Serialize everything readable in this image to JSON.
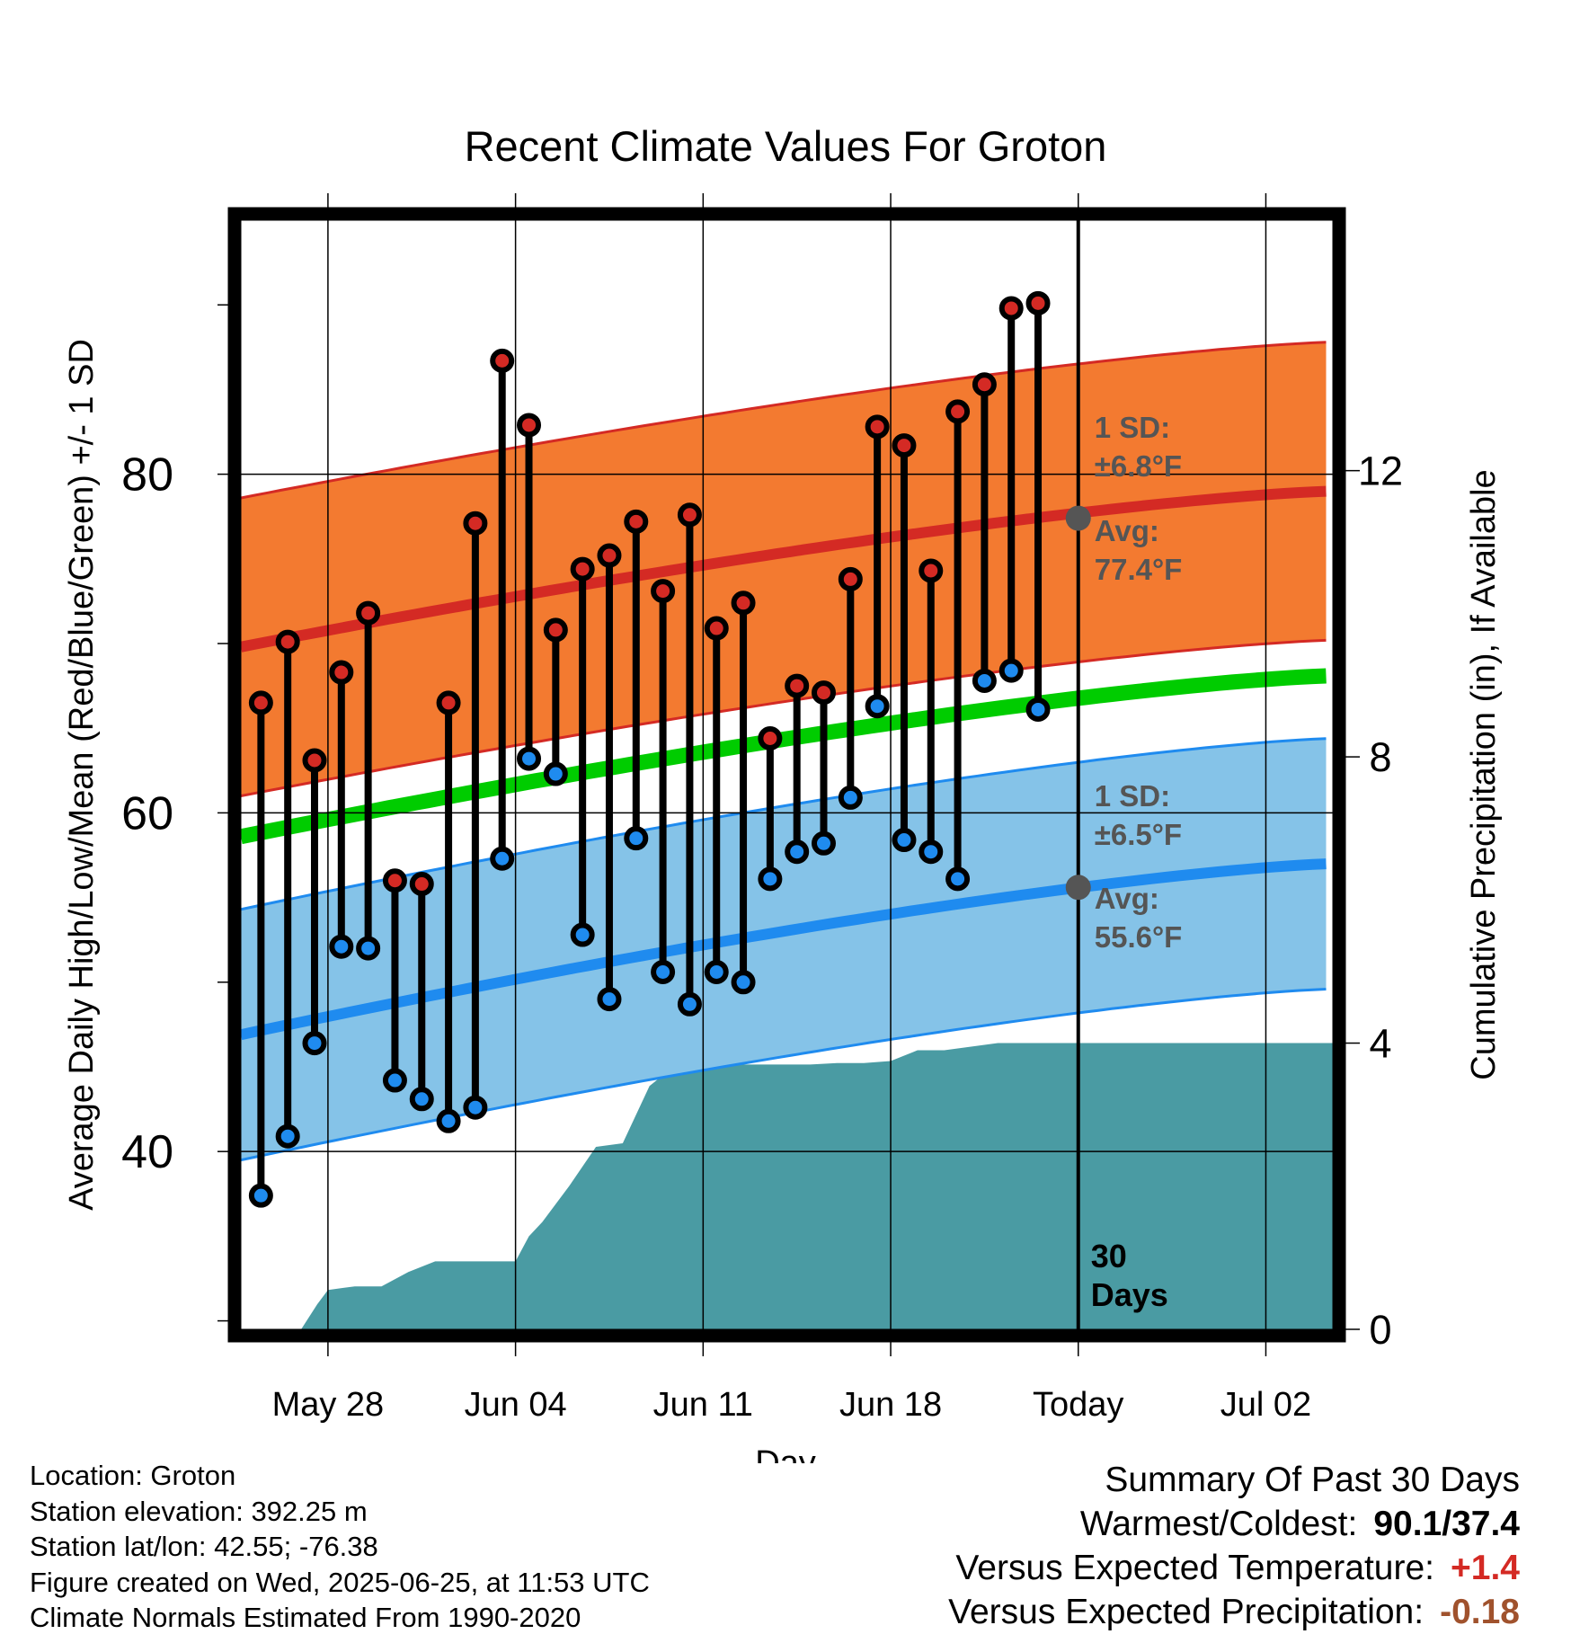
{
  "chart_data": {
    "type": "line",
    "title": "Recent Climate Values For Groton",
    "xlabel": "Day",
    "ylabel": "Average Daily High/Low/Mean (Red/Blue/Green) +/- 1 SD",
    "y2label": "Cumulative Precipitation (in), If Available",
    "x_tick_labels": [
      "May 28",
      "Jun 04",
      "Jun 11",
      "Jun 18",
      "Today",
      "Jul 02"
    ],
    "x_tick_days": [
      3,
      10,
      17,
      24,
      31,
      38
    ],
    "xlim_days": [
      -0.25,
      40.5
    ],
    "ylim": [
      29.5,
      95
    ],
    "y_ticks": [
      40,
      60,
      80
    ],
    "y2lim": [
      0,
      15.5
    ],
    "y2_ticks": [
      0,
      4,
      8,
      12
    ],
    "today_day": 31,
    "today_label_line1": "30",
    "today_label_line2": "Days",
    "colors": {
      "high_band": "#f37a30",
      "high_line": "#d42a24",
      "low_band": "#85c3e8",
      "low_line": "#1f8bef",
      "mean_line": "#00cc00",
      "precip": "#4a9ba3",
      "high_marker": "#d42a24",
      "low_marker": "#1f8bef"
    },
    "normals": {
      "high_avg_start": 69.8,
      "high_avg_end": 79.0,
      "high_sd": 8.8,
      "low_avg_start": 46.9,
      "low_avg_end": 57.0,
      "low_sd": 7.4,
      "mean_start": 58.6,
      "mean_end": 68.1
    },
    "observed": {
      "highs": [
        66.5,
        70.1,
        63.1,
        68.3,
        71.8,
        56.0,
        55.8,
        66.5,
        77.1,
        86.7,
        82.9,
        70.8,
        74.4,
        75.2,
        77.2,
        73.1,
        77.6,
        70.9,
        72.4,
        64.4,
        67.5,
        67.1,
        73.8,
        82.8,
        81.7,
        74.3,
        83.7,
        85.3,
        89.8,
        90.1
      ],
      "lows": [
        37.4,
        40.9,
        46.4,
        52.1,
        52.0,
        44.2,
        43.1,
        41.8,
        42.6,
        57.3,
        63.2,
        62.3,
        52.8,
        49.0,
        58.5,
        50.6,
        48.7,
        50.6,
        50.0,
        56.1,
        57.7,
        58.2,
        60.9,
        66.3,
        58.4,
        57.7,
        56.1,
        67.8,
        68.4,
        66.1
      ]
    },
    "precip_cumulative": {
      "days": [
        0,
        2,
        2.6,
        3,
        4,
        5,
        6,
        7,
        8,
        9,
        10,
        10.5,
        11,
        12,
        13,
        14,
        15,
        16,
        17,
        18,
        19,
        20,
        21,
        22,
        23,
        24,
        25,
        26,
        27,
        28,
        29,
        30,
        31,
        40.5
      ],
      "values": [
        0,
        0,
        0.35,
        0.55,
        0.6,
        0.6,
        0.8,
        0.95,
        0.95,
        0.95,
        0.95,
        1.3,
        1.5,
        2.0,
        2.55,
        2.6,
        3.4,
        3.7,
        3.7,
        3.7,
        3.7,
        3.7,
        3.7,
        3.72,
        3.72,
        3.75,
        3.9,
        3.9,
        3.95,
        4.0,
        4.0,
        4.0,
        4.0,
        4.0
      ]
    },
    "annotations": {
      "high_sd_title": "1 SD:",
      "high_sd_value": "±6.8°F",
      "high_avg_title": "Avg:",
      "high_avg_value": "77.4°F",
      "high_avg_numeric": 77.4,
      "low_sd_title": "1 SD:",
      "low_sd_value": "±6.5°F",
      "low_avg_title": "Avg:",
      "low_avg_value": "55.6°F",
      "low_avg_numeric": 55.6
    }
  },
  "info": {
    "location": "Location: Groton",
    "elevation": "Station elevation: 392.25 m",
    "latlon": "Station lat/lon: 42.55; -76.38",
    "created": "Figure created on Wed, 2025-06-25, at 11:53 UTC",
    "normals": "Climate Normals Estimated From 1990-2020"
  },
  "summary": {
    "title": "Summary Of Past 30 Days",
    "warmest_label": "Warmest/Coldest:",
    "warmest_value": "90.1/37.4",
    "temp_label": "Versus Expected Temperature:",
    "temp_value": "+1.4",
    "temp_color": "#d42a24",
    "precip_label": "Versus Expected Precipitation:",
    "precip_value": "-0.18",
    "precip_color": "#a0522d"
  }
}
